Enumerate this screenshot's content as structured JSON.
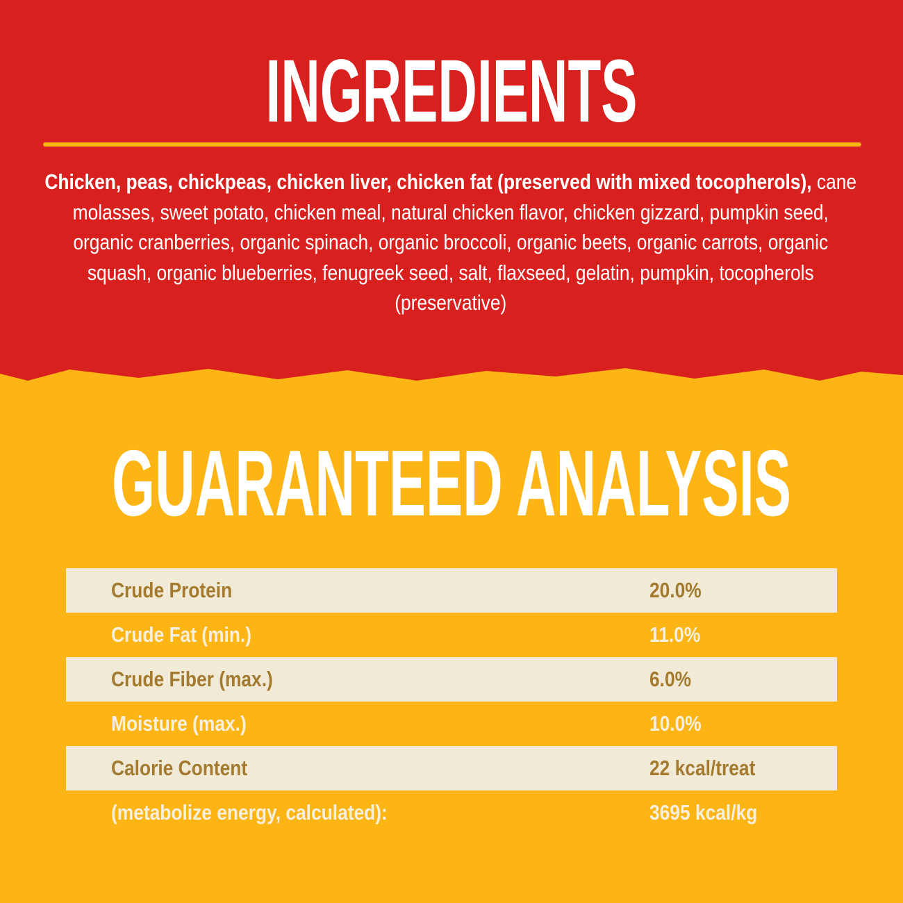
{
  "ingredients": {
    "title": "INGREDIENTS",
    "bold_text": "Chicken, peas, chickpeas, chicken liver, chicken fat (preserved with mixed tocopherols),",
    "text": "cane molasses, sweet potato, chicken meal, natural chicken flavor, chicken gizzard, pumpkin seed, organic cranberries, organic spinach, organic broccoli, organic beets, organic carrots, organic squash, organic blueberries, fenugreek seed, salt, flaxseed, gelatin, pumpkin, tocopherols (preservative)"
  },
  "analysis": {
    "title": "GUARANTEED ANALYSIS",
    "rows": [
      [
        "Crude Protein",
        "20.0%"
      ],
      [
        "Crude Fat (min.)",
        "11.0%"
      ],
      [
        "Crude Fiber (max.)",
        "6.0%"
      ],
      [
        "Moisture (max.)",
        "10.0%"
      ],
      [
        "Calorie Content",
        "22 kcal/treat"
      ],
      [
        "(metabolize energy, calculated):",
        "3695 kcal/kg"
      ]
    ]
  }
}
